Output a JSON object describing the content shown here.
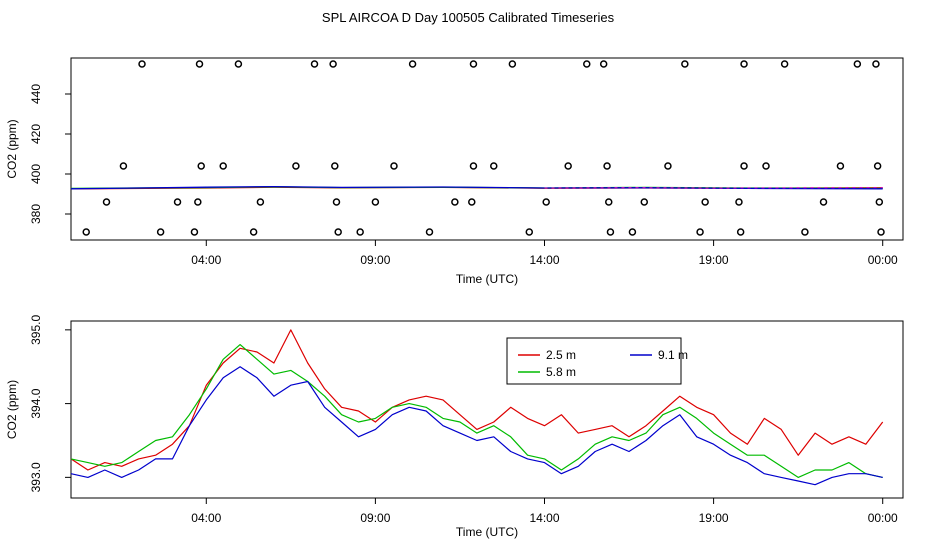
{
  "title": "SPL AIRCOA D  Day 100505  Calibrated Timeseries",
  "colors": {
    "series_2_5": "#dd0000",
    "series_5_8": "#00bb00",
    "series_9_1": "#0000cc",
    "outlier": "#000000",
    "magenta": "#cc00cc"
  },
  "chart_data": [
    {
      "type": "line",
      "id": "top",
      "xlabel": "Time (UTC)",
      "ylabel": "CO2 (ppm)",
      "xlim": [
        0.0,
        24.6
      ],
      "ylim": [
        367.0,
        458.0
      ],
      "x_ticks": [
        4,
        9,
        14,
        19,
        24
      ],
      "x_tick_labels": [
        "04:00",
        "09:00",
        "14:00",
        "19:00",
        "00:00"
      ],
      "y_ticks": [
        380,
        400,
        420,
        440
      ],
      "y_tick_labels": [
        "380",
        "400",
        "420",
        "440"
      ],
      "flat_series": [
        {
          "name": "2.5 m",
          "x": [
            0.0,
            4.0,
            6.0,
            8.0,
            11.0,
            14.0,
            17.0,
            20.0,
            24.0
          ],
          "y": [
            392.6,
            393.0,
            393.4,
            393.1,
            393.3,
            392.9,
            393.0,
            392.9,
            393.1
          ]
        },
        {
          "name": "5.8 m",
          "x": [
            0.0,
            4.0,
            6.0,
            8.0,
            11.0,
            14.0,
            17.0,
            20.0,
            24.0
          ],
          "y": [
            392.8,
            393.2,
            393.6,
            393.2,
            393.4,
            393.0,
            393.3,
            393.0,
            392.8
          ]
        },
        {
          "name": "9.1 m",
          "x": [
            0.0,
            4.0,
            6.0,
            8.0,
            11.0,
            14.0,
            17.0,
            20.0,
            24.0
          ],
          "y": [
            392.6,
            393.4,
            393.7,
            393.3,
            393.5,
            393.0,
            393.1,
            392.8,
            392.6
          ]
        }
      ],
      "outliers": {
        "x": [
          2.1,
          3.8,
          4.95,
          7.2,
          7.75,
          10.1,
          11.9,
          13.05,
          15.25,
          15.75,
          18.15,
          19.9,
          21.1,
          23.25,
          23.8,
          1.55,
          3.85,
          4.5,
          6.65,
          7.8,
          9.55,
          11.9,
          12.5,
          14.7,
          15.85,
          17.65,
          19.9,
          20.55,
          22.75,
          23.85,
          1.05,
          3.15,
          3.75,
          5.6,
          7.85,
          9.0,
          11.35,
          11.85,
          14.05,
          15.9,
          16.95,
          18.75,
          19.75,
          22.25,
          23.9,
          0.45,
          2.65,
          3.65,
          5.4,
          7.9,
          8.55,
          10.6,
          13.55,
          15.95,
          16.6,
          18.6,
          19.8,
          21.7,
          23.95
        ],
        "y": [
          455,
          455,
          455,
          455,
          455,
          455,
          455,
          455,
          455,
          455,
          455,
          455,
          455,
          455,
          455,
          404,
          404,
          404,
          404,
          404,
          404,
          404,
          404,
          404,
          404,
          404,
          404,
          404,
          404,
          404,
          386,
          386,
          386,
          386,
          386,
          386,
          386,
          386,
          386,
          386,
          386,
          386,
          386,
          386,
          386,
          371,
          371,
          371,
          371,
          371,
          371,
          371,
          371,
          371,
          371,
          371,
          371,
          371,
          371
        ]
      }
    },
    {
      "type": "line",
      "id": "bottom",
      "xlabel": "Time (UTC)",
      "ylabel": "CO2 (ppm)",
      "xlim": [
        0.0,
        24.6
      ],
      "ylim": [
        392.72,
        395.12
      ],
      "x_ticks": [
        4,
        9,
        14,
        19,
        24
      ],
      "x_tick_labels": [
        "04:00",
        "09:00",
        "14:00",
        "19:00",
        "00:00"
      ],
      "y_ticks": [
        393.0,
        394.0,
        395.0
      ],
      "y_tick_labels": [
        "393.0",
        "394.0",
        "395.0"
      ],
      "legend": {
        "position": "top-center",
        "entries": [
          "2.5 m",
          "5.8 m",
          "9.1 m"
        ]
      },
      "series": [
        {
          "name": "2.5 m",
          "x": [
            0,
            0.5,
            1,
            1.5,
            2,
            2.5,
            3,
            3.5,
            4,
            4.5,
            5,
            5.5,
            6,
            6.5,
            7,
            7.5,
            8,
            8.5,
            9,
            9.5,
            10,
            10.5,
            11,
            11.5,
            12,
            12.5,
            13,
            13.5,
            14,
            14.5,
            15,
            15.5,
            16,
            16.5,
            17,
            17.5,
            18,
            18.5,
            19,
            19.5,
            20,
            20.5,
            21,
            21.5,
            22,
            22.5,
            23,
            23.5,
            24
          ],
          "y": [
            393.25,
            393.1,
            393.2,
            393.15,
            393.25,
            393.3,
            393.45,
            393.7,
            394.25,
            394.55,
            394.75,
            394.7,
            394.55,
            395.0,
            394.55,
            394.2,
            393.95,
            393.9,
            393.75,
            393.95,
            394.05,
            394.1,
            394.05,
            393.85,
            393.65,
            393.75,
            393.95,
            393.8,
            393.7,
            393.85,
            393.6,
            393.65,
            393.7,
            393.55,
            393.7,
            393.9,
            394.1,
            393.95,
            393.85,
            393.6,
            393.45,
            393.8,
            393.65,
            393.3,
            393.6,
            393.45,
            393.55,
            393.45,
            393.75
          ]
        },
        {
          "name": "5.8 m",
          "x": [
            0,
            0.5,
            1,
            1.5,
            2,
            2.5,
            3,
            3.5,
            4,
            4.5,
            5,
            5.5,
            6,
            6.5,
            7,
            7.5,
            8,
            8.5,
            9,
            9.5,
            10,
            10.5,
            11,
            11.5,
            12,
            12.5,
            13,
            13.5,
            14,
            14.5,
            15,
            15.5,
            16,
            16.5,
            17,
            17.5,
            18,
            18.5,
            19,
            19.5,
            20,
            20.5,
            21,
            21.5,
            22,
            22.5,
            23,
            23.5,
            24
          ],
          "y": [
            393.25,
            393.2,
            393.15,
            393.2,
            393.35,
            393.5,
            393.55,
            393.85,
            394.2,
            394.6,
            394.8,
            394.6,
            394.4,
            394.45,
            394.3,
            394.1,
            393.85,
            393.75,
            393.8,
            393.95,
            394.0,
            393.95,
            393.8,
            393.75,
            393.6,
            393.7,
            393.55,
            393.3,
            393.25,
            393.1,
            393.25,
            393.45,
            393.55,
            393.5,
            393.6,
            393.85,
            393.95,
            393.8,
            393.6,
            393.45,
            393.3,
            393.3,
            393.15,
            393.0,
            393.1,
            393.1,
            393.2,
            393.05,
            393.0
          ]
        },
        {
          "name": "9.1 m",
          "x": [
            0,
            0.5,
            1,
            1.5,
            2,
            2.5,
            3,
            3.5,
            4,
            4.5,
            5,
            5.5,
            6,
            6.5,
            7,
            7.5,
            8,
            8.5,
            9,
            9.5,
            10,
            10.5,
            11,
            11.5,
            12,
            12.5,
            13,
            13.5,
            14,
            14.5,
            15,
            15.5,
            16,
            16.5,
            17,
            17.5,
            18,
            18.5,
            19,
            19.5,
            20,
            20.5,
            21,
            21.5,
            22,
            22.5,
            23,
            23.5,
            24
          ],
          "y": [
            393.05,
            393.0,
            393.1,
            393.0,
            393.1,
            393.25,
            393.25,
            393.7,
            394.05,
            394.35,
            394.5,
            394.35,
            394.1,
            394.25,
            394.3,
            393.95,
            393.75,
            393.55,
            393.65,
            393.85,
            393.95,
            393.9,
            393.7,
            393.6,
            393.5,
            393.55,
            393.35,
            393.25,
            393.2,
            393.05,
            393.15,
            393.35,
            393.45,
            393.35,
            393.5,
            393.7,
            393.85,
            393.55,
            393.45,
            393.3,
            393.2,
            393.05,
            393.0,
            392.95,
            392.9,
            393.0,
            393.05,
            393.05,
            393.0
          ]
        }
      ]
    }
  ]
}
